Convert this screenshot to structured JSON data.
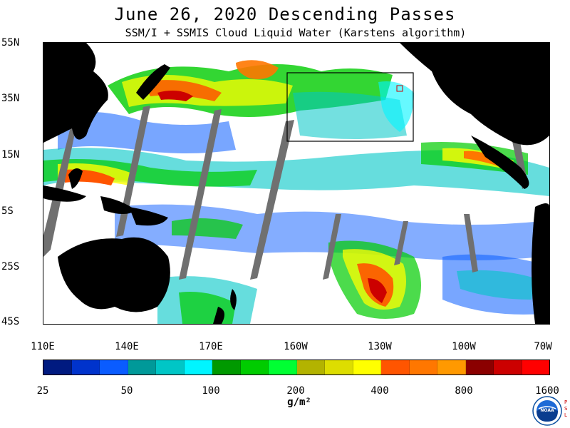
{
  "title": "June 26, 2020  Descending Passes",
  "subtitle": "SSM/I + SSMIS Cloud Liquid Water (Karstens algorithm)",
  "lat_labels": [
    "55N",
    "35N",
    "15N",
    "5S",
    "25S",
    "45S"
  ],
  "lon_labels": [
    "110E",
    "140E",
    "170E",
    "160W",
    "130W",
    "100W",
    "70W"
  ],
  "colorbar": {
    "labels": [
      "25",
      "50",
      "100",
      "200",
      "400",
      "800",
      "1600"
    ],
    "colors": [
      "#001a80",
      "#0033cc",
      "#0a5cff",
      "#009999",
      "#00c6c6",
      "#00f5ff",
      "#009900",
      "#00cc00",
      "#00ff33",
      "#b3b300",
      "#dddd00",
      "#ffff00",
      "#ff5500",
      "#ff7700",
      "#ff9900",
      "#8b0000",
      "#cc0000",
      "#ff0000"
    ],
    "units": "g/m²"
  },
  "logo": {
    "name": "NOAA",
    "text": "NOAA",
    "side_text": "PSL"
  }
}
